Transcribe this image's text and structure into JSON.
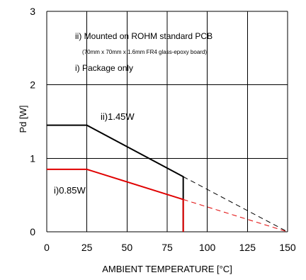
{
  "chart_data": {
    "type": "line",
    "xlabel": "AMBIENT TEMPERATURE [°C]",
    "ylabel": "Pd [W]",
    "xlim": [
      0,
      150
    ],
    "ylim": [
      0,
      3
    ],
    "x_ticks": [
      0,
      25,
      50,
      75,
      100,
      125,
      150
    ],
    "y_ticks": [
      0,
      1,
      2,
      3
    ],
    "grid": true,
    "notes": [
      "ii) Mounted on ROHM standard PCB",
      "(70mm x 70mm x 1.6mm FR4 glass-epoxy board)",
      "i) Package only"
    ],
    "series": [
      {
        "name": "ii)1.45W",
        "color": "#000000",
        "solid": [
          [
            0,
            1.45
          ],
          [
            25,
            1.45
          ],
          [
            85,
            0.75
          ],
          [
            85,
            0
          ]
        ],
        "dashed": [
          [
            85,
            0.75
          ],
          [
            150,
            0
          ]
        ]
      },
      {
        "name": "i)0.85W",
        "color": "#e00000",
        "solid": [
          [
            0,
            0.85
          ],
          [
            25,
            0.85
          ],
          [
            85,
            0.44
          ],
          [
            85,
            0
          ]
        ],
        "dashed": [
          [
            85,
            0.44
          ],
          [
            150,
            0
          ]
        ]
      }
    ]
  }
}
